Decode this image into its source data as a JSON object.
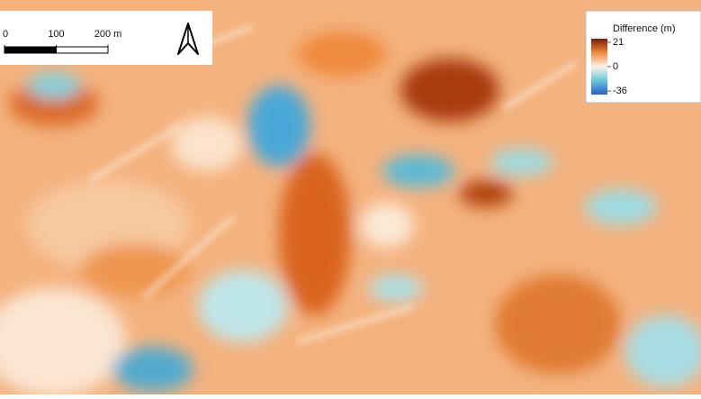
{
  "scale_bar": {
    "ticks": [
      0,
      100,
      {
        "value": 200,
        "label": "200 m"
      }
    ]
  },
  "legend": {
    "title": "Difference (m)",
    "ticks": [
      21,
      0,
      -36
    ],
    "colors": [
      "#7a1a06",
      "#f08a3c",
      "#fbf3ea",
      "#6cc6d6",
      "#2a5bd0"
    ]
  }
}
